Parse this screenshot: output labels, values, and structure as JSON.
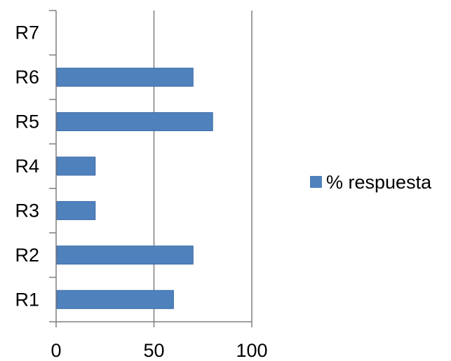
{
  "chart_data": {
    "type": "bar",
    "orientation": "horizontal",
    "categories": [
      "R1",
      "R2",
      "R3",
      "R4",
      "R5",
      "R6",
      "R7"
    ],
    "series": [
      {
        "name": "% respuesta",
        "values": [
          60,
          70,
          20,
          20,
          80,
          70,
          0
        ]
      }
    ],
    "xlim": [
      0,
      100
    ],
    "x_ticks": [
      0,
      50,
      100
    ],
    "x_tick_labels": [
      "0",
      "50",
      "100"
    ],
    "grid": "vertical major gridlines",
    "legend_position": "right",
    "colors": {
      "bar": "#4F81BD",
      "bar_edge": "#3C6BA8",
      "axis": "#7F7F7F",
      "grid": "#7F7F7F",
      "text": "#000000"
    }
  }
}
